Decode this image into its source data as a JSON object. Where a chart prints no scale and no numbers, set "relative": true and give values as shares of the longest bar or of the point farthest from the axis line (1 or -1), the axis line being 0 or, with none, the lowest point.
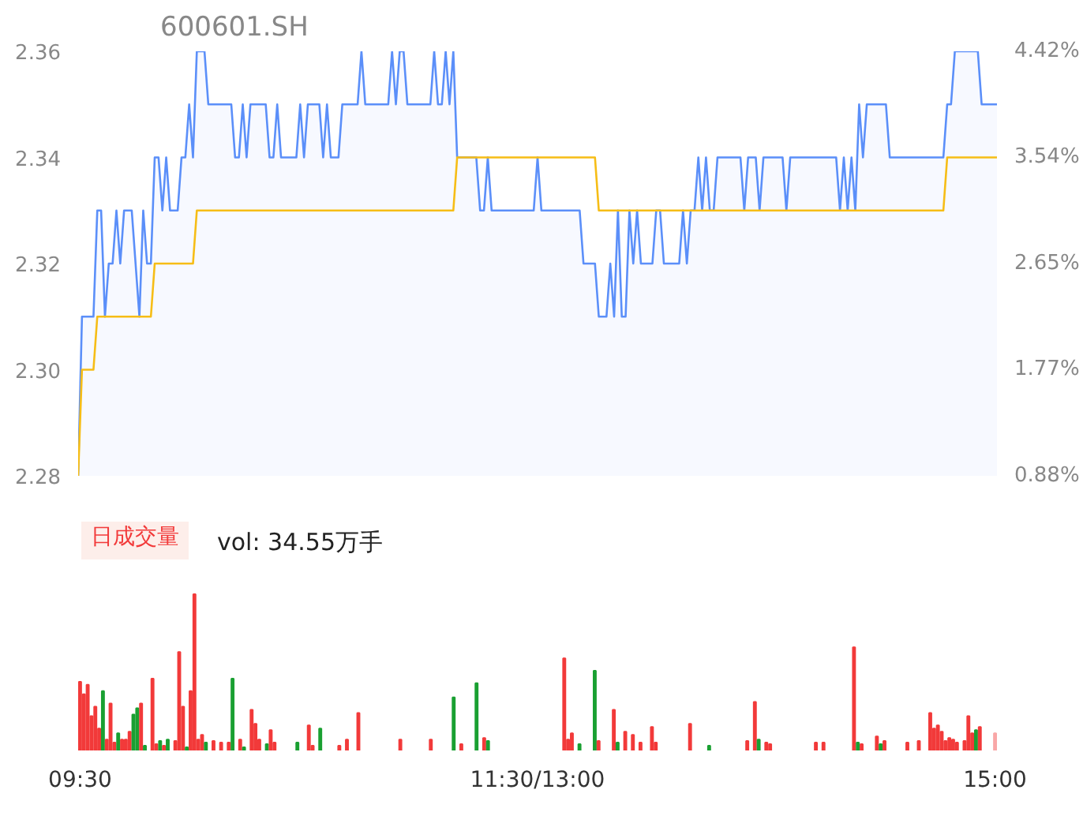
{
  "chart_data": [
    {
      "type": "line",
      "title": "600601.SH",
      "ylim": [
        2.28,
        2.36
      ],
      "yticks": [
        {
          "value": 2.28,
          "label": "2.28"
        },
        {
          "value": 2.3,
          "label": "2.30"
        },
        {
          "value": 2.32,
          "label": "2.32"
        },
        {
          "value": 2.34,
          "label": "2.34"
        },
        {
          "value": 2.36,
          "label": "2.36"
        }
      ],
      "y2lim": [
        0.88,
        4.42
      ],
      "y2ticks": [
        {
          "value": 0.88,
          "label": "0.88%"
        },
        {
          "value": 1.77,
          "label": "1.77%"
        },
        {
          "value": 2.65,
          "label": "2.65%"
        },
        {
          "value": 3.54,
          "label": "3.54%"
        },
        {
          "value": 4.42,
          "label": "4.42%"
        }
      ],
      "tick_labels": "y",
      "grid": false,
      "categories": [
        null,
        null,
        null,
        null,
        null,
        null,
        null,
        null,
        null,
        null,
        null,
        null,
        null,
        null,
        null,
        null,
        null,
        null,
        null,
        null,
        null,
        null,
        null,
        null,
        null,
        null,
        null,
        null,
        null,
        null,
        null,
        null,
        null,
        null,
        null,
        null,
        null,
        null,
        null,
        null,
        null,
        null,
        null,
        null,
        null,
        null,
        null,
        null,
        null,
        null,
        null,
        null,
        null,
        null,
        null,
        null,
        null,
        null,
        null,
        null,
        null,
        null,
        null,
        null,
        null,
        null,
        null,
        null,
        null,
        null,
        null,
        null,
        null,
        null,
        null,
        null,
        null,
        null,
        null,
        null,
        null,
        null,
        null,
        null,
        null,
        null,
        null,
        null,
        null,
        null,
        null,
        null,
        null,
        null,
        null,
        null,
        null,
        null,
        null,
        null,
        null,
        null,
        null,
        null,
        null,
        null,
        null,
        null,
        null,
        null,
        null,
        null,
        null,
        null,
        null,
        null,
        null,
        null,
        null,
        null,
        null,
        null,
        null,
        null,
        null,
        null,
        null,
        null,
        null,
        null,
        null,
        null,
        null,
        null,
        null,
        null,
        null,
        null,
        null,
        null,
        null,
        null,
        null,
        null,
        null,
        null,
        null,
        null,
        null,
        null,
        null,
        null,
        null,
        null,
        null,
        null,
        null,
        null,
        null,
        null,
        null,
        null,
        null,
        null,
        null,
        null,
        null,
        null,
        null,
        null,
        null,
        null,
        null,
        null,
        null,
        null,
        null,
        null,
        null,
        null,
        null,
        null,
        null,
        null,
        null,
        null,
        null,
        null,
        null,
        null,
        null,
        null,
        null,
        null,
        null,
        null,
        null,
        null,
        null,
        null,
        null,
        null,
        null,
        null,
        null,
        null,
        null,
        null,
        null,
        null,
        null,
        null,
        null,
        null,
        null,
        null,
        null,
        null,
        null,
        null,
        null,
        null,
        null,
        null,
        null,
        null,
        null,
        null,
        null,
        null,
        null,
        null,
        null,
        null,
        null,
        null,
        null,
        null,
        null,
        null,
        null
      ],
      "series": [
        {
          "type": "area",
          "color": "#5b8ff9",
          "values": [
            2.28,
            2.31,
            2.31,
            2.31,
            2.31,
            2.33,
            2.33,
            2.31,
            2.32,
            2.32,
            2.33,
            2.32,
            2.33,
            2.33,
            2.33,
            2.32,
            2.31,
            2.33,
            2.32,
            2.32,
            2.34,
            2.34,
            2.33,
            2.34,
            2.33,
            2.33,
            2.33,
            2.34,
            2.34,
            2.35,
            2.34,
            2.36,
            2.36,
            2.36,
            2.35,
            2.35,
            2.35,
            2.35,
            2.35,
            2.35,
            2.35,
            2.34,
            2.34,
            2.35,
            2.34,
            2.35,
            2.35,
            2.35,
            2.35,
            2.35,
            2.34,
            2.34,
            2.35,
            2.34,
            2.34,
            2.34,
            2.34,
            2.34,
            2.35,
            2.34,
            2.35,
            2.35,
            2.35,
            2.35,
            2.34,
            2.35,
            2.34,
            2.34,
            2.34,
            2.35,
            2.35,
            2.35,
            2.35,
            2.35,
            2.36,
            2.35,
            2.35,
            2.35,
            2.35,
            2.35,
            2.35,
            2.35,
            2.36,
            2.35,
            2.36,
            2.36,
            2.35,
            2.35,
            2.35,
            2.35,
            2.35,
            2.35,
            2.35,
            2.36,
            2.35,
            2.35,
            2.36,
            2.35,
            2.36,
            2.34,
            2.34,
            2.34,
            2.34,
            2.34,
            2.34,
            2.33,
            2.33,
            2.34,
            2.33,
            2.33,
            2.33,
            2.33,
            2.33,
            2.33,
            2.33,
            2.33,
            2.33,
            2.33,
            2.33,
            2.33,
            2.34,
            2.33,
            2.33,
            2.33,
            2.33,
            2.33,
            2.33,
            2.33,
            2.33,
            2.33,
            2.33,
            2.33,
            2.32,
            2.32,
            2.32,
            2.32,
            2.31,
            2.31,
            2.31,
            2.32,
            2.31,
            2.33,
            2.31,
            2.31,
            2.33,
            2.32,
            2.33,
            2.32,
            2.32,
            2.32,
            2.32,
            2.33,
            2.33,
            2.32,
            2.32,
            2.32,
            2.32,
            2.32,
            2.33,
            2.32,
            2.33,
            2.33,
            2.34,
            2.33,
            2.34,
            2.33,
            2.33,
            2.34,
            2.34,
            2.34,
            2.34,
            2.34,
            2.34,
            2.34,
            2.33,
            2.34,
            2.34,
            2.34,
            2.33,
            2.34,
            2.34,
            2.34,
            2.34,
            2.34,
            2.34,
            2.33,
            2.34,
            2.34,
            2.34,
            2.34,
            2.34,
            2.34,
            2.34,
            2.34,
            2.34,
            2.34,
            2.34,
            2.34,
            2.34,
            2.33,
            2.34,
            2.33,
            2.34,
            2.33,
            2.35,
            2.34,
            2.35,
            2.35,
            2.35,
            2.35,
            2.35,
            2.35,
            2.34,
            2.34,
            2.34,
            2.34,
            2.34,
            2.34,
            2.34,
            2.34,
            2.34,
            2.34,
            2.34,
            2.34,
            2.34,
            2.34,
            2.34,
            2.35,
            2.35,
            2.36,
            2.36,
            2.36,
            2.36,
            2.36,
            2.36,
            2.36,
            2.35,
            2.35,
            2.35,
            2.35,
            2.35
          ]
        },
        {
          "type": "line",
          "color": "#f6bd16",
          "values": [
            2.28,
            2.3,
            2.3,
            2.3,
            2.3,
            2.31,
            2.31,
            2.31,
            2.31,
            2.31,
            2.31,
            2.31,
            2.31,
            2.31,
            2.31,
            2.31,
            2.31,
            2.31,
            2.31,
            2.31,
            2.32,
            2.32,
            2.32,
            2.32,
            2.32,
            2.32,
            2.32,
            2.32,
            2.32,
            2.32,
            2.32,
            2.33,
            2.33,
            2.33,
            2.33,
            2.33,
            2.33,
            2.33,
            2.33,
            2.33,
            2.33,
            2.33,
            2.33,
            2.33,
            2.33,
            2.33,
            2.33,
            2.33,
            2.33,
            2.33,
            2.33,
            2.33,
            2.33,
            2.33,
            2.33,
            2.33,
            2.33,
            2.33,
            2.33,
            2.33,
            2.33,
            2.33,
            2.33,
            2.33,
            2.33,
            2.33,
            2.33,
            2.33,
            2.33,
            2.33,
            2.33,
            2.33,
            2.33,
            2.33,
            2.33,
            2.33,
            2.33,
            2.33,
            2.33,
            2.33,
            2.33,
            2.33,
            2.33,
            2.33,
            2.33,
            2.33,
            2.33,
            2.33,
            2.33,
            2.33,
            2.33,
            2.33,
            2.33,
            2.33,
            2.33,
            2.33,
            2.33,
            2.33,
            2.33,
            2.34,
            2.34,
            2.34,
            2.34,
            2.34,
            2.34,
            2.34,
            2.34,
            2.34,
            2.34,
            2.34,
            2.34,
            2.34,
            2.34,
            2.34,
            2.34,
            2.34,
            2.34,
            2.34,
            2.34,
            2.34,
            2.34,
            2.34,
            2.34,
            2.34,
            2.34,
            2.34,
            2.34,
            2.34,
            2.34,
            2.34,
            2.34,
            2.34,
            2.34,
            2.34,
            2.34,
            2.34,
            2.33,
            2.33,
            2.33,
            2.33,
            2.33,
            2.33,
            2.33,
            2.33,
            2.33,
            2.33,
            2.33,
            2.33,
            2.33,
            2.33,
            2.33,
            2.33,
            2.33,
            2.33,
            2.33,
            2.33,
            2.33,
            2.33,
            2.33,
            2.33,
            2.33,
            2.33,
            2.33,
            2.33,
            2.33,
            2.33,
            2.33,
            2.33,
            2.33,
            2.33,
            2.33,
            2.33,
            2.33,
            2.33,
            2.33,
            2.33,
            2.33,
            2.33,
            2.33,
            2.33,
            2.33,
            2.33,
            2.33,
            2.33,
            2.33,
            2.33,
            2.33,
            2.33,
            2.33,
            2.33,
            2.33,
            2.33,
            2.33,
            2.33,
            2.33,
            2.33,
            2.33,
            2.33,
            2.33,
            2.33,
            2.33,
            2.33,
            2.33,
            2.33,
            2.33,
            2.33,
            2.33,
            2.33,
            2.33,
            2.33,
            2.33,
            2.33,
            2.33,
            2.33,
            2.33,
            2.33,
            2.33,
            2.33,
            2.33,
            2.33,
            2.33,
            2.33,
            2.33,
            2.33,
            2.33,
            2.33,
            2.33,
            2.34,
            2.34,
            2.34,
            2.34,
            2.34,
            2.34,
            2.34,
            2.34,
            2.34,
            2.34,
            2.34,
            2.34,
            2.34,
            2.34
          ]
        }
      ]
    },
    {
      "type": "bar",
      "title": "日成交量",
      "annotations": [
        "vol: 34.55万手"
      ],
      "relative": true,
      "tick_labels": "x",
      "grid": false,
      "categories": [
        "09:30",
        null,
        null,
        null,
        null,
        null,
        null,
        null,
        null,
        null,
        null,
        null,
        null,
        null,
        null,
        null,
        null,
        null,
        null,
        null,
        null,
        null,
        null,
        null,
        null,
        null,
        null,
        null,
        null,
        null,
        null,
        null,
        null,
        null,
        null,
        null,
        null,
        null,
        null,
        null,
        null,
        null,
        null,
        null,
        null,
        null,
        null,
        null,
        null,
        null,
        null,
        null,
        null,
        null,
        null,
        null,
        null,
        null,
        null,
        null,
        null,
        null,
        null,
        null,
        null,
        null,
        null,
        null,
        null,
        null,
        null,
        null,
        null,
        null,
        null,
        null,
        null,
        null,
        null,
        null,
        null,
        null,
        null,
        null,
        null,
        null,
        null,
        null,
        null,
        null,
        null,
        null,
        null,
        null,
        null,
        null,
        null,
        null,
        null,
        null,
        null,
        null,
        null,
        null,
        null,
        null,
        null,
        null,
        null,
        null,
        null,
        null,
        null,
        null,
        null,
        null,
        null,
        null,
        null,
        null,
        "11:30/13:00",
        null,
        null,
        null,
        null,
        null,
        null,
        null,
        null,
        null,
        null,
        null,
        null,
        null,
        null,
        null,
        null,
        null,
        null,
        null,
        null,
        null,
        null,
        null,
        null,
        null,
        null,
        null,
        null,
        null,
        null,
        null,
        null,
        null,
        null,
        null,
        null,
        null,
        null,
        null,
        null,
        null,
        null,
        null,
        null,
        null,
        null,
        null,
        null,
        null,
        null,
        null,
        null,
        null,
        null,
        null,
        null,
        null,
        null,
        null,
        null,
        null,
        null,
        null,
        null,
        null,
        null,
        null,
        null,
        null,
        null,
        null,
        null,
        null,
        null,
        null,
        null,
        null,
        null,
        null,
        null,
        null,
        null,
        null,
        null,
        null,
        null,
        null,
        null,
        null,
        null,
        null,
        null,
        null,
        null,
        null,
        null,
        null,
        null,
        null,
        null,
        null,
        null,
        null,
        null,
        null,
        null,
        null,
        null,
        null,
        null,
        null,
        null,
        null,
        null,
        null,
        null,
        null,
        null,
        null,
        "15:00"
      ],
      "values": [
        0.44,
        0.36,
        0.42,
        0.22,
        0.28,
        0.14,
        0.38,
        0.07,
        0.3,
        0.05,
        0.11,
        0.07,
        0.07,
        0.12,
        0.23,
        0.27,
        0.3,
        0.03,
        null,
        0.46,
        0.04,
        0.06,
        0.03,
        0.07,
        null,
        0.06,
        0.63,
        0.28,
        0.02,
        0.38,
        1,
        0.07,
        0.1,
        0.05,
        null,
        0.06,
        null,
        0.05,
        null,
        0.05,
        0.46,
        null,
        0.07,
        0.02,
        null,
        0.26,
        0.17,
        0.07,
        null,
        0.04,
        0.13,
        0.05,
        null,
        null,
        null,
        null,
        null,
        0.05,
        null,
        null,
        0.16,
        0.03,
        null,
        0.14,
        null,
        null,
        null,
        null,
        0.03,
        null,
        0.07,
        null,
        null,
        0.24,
        null,
        null,
        null,
        null,
        null,
        null,
        null,
        null,
        null,
        null,
        0.07,
        null,
        null,
        null,
        null,
        null,
        null,
        null,
        0.07,
        null,
        null,
        null,
        null,
        null,
        0.34,
        null,
        0.04,
        null,
        null,
        null,
        0.43,
        null,
        0.08,
        0.06,
        null,
        null,
        null,
        null,
        null,
        null,
        null,
        null,
        null,
        null,
        null,
        null,
        null,
        null,
        null,
        null,
        null,
        null,
        null,
        0.59,
        0.07,
        0.11,
        null,
        0.04,
        null,
        null,
        null,
        0.51,
        0.06,
        null,
        null,
        null,
        0.26,
        0.05,
        null,
        0.12,
        null,
        0.1,
        null,
        0.05,
        null,
        null,
        0.15,
        0.05,
        null,
        null,
        null,
        null,
        null,
        null,
        null,
        null,
        0.17,
        null,
        null,
        null,
        null,
        0.03,
        null,
        null,
        null,
        null,
        null,
        null,
        null,
        null,
        null,
        0.06,
        null,
        0.31,
        0.07,
        null,
        0.05,
        0.04,
        null,
        null,
        null,
        null,
        null,
        null,
        null,
        null,
        null,
        null,
        null,
        0.05,
        null,
        0.05,
        null,
        null,
        null,
        null,
        null,
        null,
        null,
        0.66,
        0.05,
        0.04,
        null,
        null,
        null,
        0.09,
        0.04,
        0.06,
        null,
        null,
        null,
        null,
        null,
        0.05,
        null,
        null,
        0.06,
        null,
        null,
        0.24,
        0.14,
        0.16,
        0.12,
        0.06,
        0.08,
        0.07,
        0.05,
        null,
        0.06,
        0.22,
        0.11,
        0.13,
        0.15,
        null,
        null,
        null,
        0.11
      ],
      "colors": [
        "#f23a3a",
        "#f23a3a",
        "#f23a3a",
        "#f23a3a",
        "#f23a3a",
        "#f23a3a",
        "#1aa032",
        "#f23a3a",
        "#f23a3a",
        "#f23a3a",
        "#1aa032",
        "#f23a3a",
        "#f23a3a",
        "#f23a3a",
        "#1aa032",
        "#1aa032",
        "#f23a3a",
        "#1aa032",
        "#f23a3a",
        "#f23a3a",
        "#f23a3a",
        "#1aa032",
        "#f23a3a",
        "#1aa032",
        "#f23a3a",
        "#f23a3a",
        "#f23a3a",
        "#f23a3a",
        "#1aa032",
        "#f23a3a",
        "#f23a3a",
        "#f23a3a",
        "#f23a3a",
        "#1aa032",
        "#f23a3a",
        "#f23a3a",
        "#f23a3a",
        "#f23a3a",
        "#f23a3a",
        "#f23a3a",
        "#1aa032",
        "#f23a3a",
        "#f23a3a",
        "#1aa032",
        "#f23a3a",
        "#f23a3a",
        "#f23a3a",
        "#f23a3a",
        "#f23a3a",
        "#1aa032",
        "#f23a3a",
        "#f23a3a",
        "#f23a3a",
        "#f23a3a",
        "#f23a3a",
        "#f23a3a",
        "#f23a3a",
        "#1aa032",
        "#f23a3a",
        "#f23a3a",
        "#f23a3a",
        "#f23a3a",
        "#f23a3a",
        "#1aa032",
        "#f23a3a",
        "#f23a3a",
        "#f23a3a",
        "#f23a3a",
        "#f23a3a",
        "#f23a3a",
        "#f23a3a",
        "#f23a3a",
        "#f23a3a",
        "#f23a3a",
        "#f23a3a",
        "#f23a3a",
        "#f23a3a",
        "#f23a3a",
        "#f23a3a",
        "#f23a3a",
        "#f23a3a",
        "#f23a3a",
        "#f23a3a",
        "#f23a3a",
        "#f23a3a",
        "#f23a3a",
        "#f23a3a",
        "#f23a3a",
        "#f23a3a",
        "#f23a3a",
        "#f23a3a",
        "#f23a3a",
        "#f23a3a",
        "#f23a3a",
        "#f23a3a",
        "#f23a3a",
        "#f23a3a",
        "#f23a3a",
        "#1aa032",
        "#f23a3a",
        "#f23a3a",
        "#f23a3a",
        "#f23a3a",
        "#f23a3a",
        "#1aa032",
        "#f23a3a",
        "#f23a3a",
        "#1aa032",
        "#f23a3a",
        "#f23a3a",
        "#f23a3a",
        "#f23a3a",
        "#f23a3a",
        "#f23a3a",
        "#f23a3a",
        "#f23a3a",
        "#f23a3a",
        "#f23a3a",
        "#f23a3a",
        "#f23a3a",
        "#f23a3a",
        "#f23a3a",
        "#f23a3a",
        "#f23a3a",
        "#f23a3a",
        "#f23a3a",
        "#f23a3a",
        "#f23a3a",
        "#f23a3a",
        "#f23a3a",
        "#f23a3a",
        "#1aa032",
        "#f23a3a",
        "#f23a3a",
        "#f23a3a",
        "#1aa032",
        "#f23a3a",
        "#f23a3a",
        "#f23a3a",
        "#f23a3a",
        "#f23a3a",
        "#1aa032",
        "#f23a3a",
        "#f23a3a",
        "#f23a3a",
        "#f23a3a",
        "#f23a3a",
        "#f23a3a",
        "#f23a3a",
        "#f23a3a",
        "#f23a3a",
        "#f23a3a",
        "#f23a3a",
        "#f23a3a",
        "#f23a3a",
        "#f23a3a",
        "#f23a3a",
        "#f23a3a",
        "#f23a3a",
        "#f23a3a",
        "#f23a3a",
        "#f23a3a",
        "#f23a3a",
        "#f23a3a",
        "#f23a3a",
        "#1aa032",
        "#f23a3a",
        "#f23a3a",
        "#f23a3a",
        "#f23a3a",
        "#f23a3a",
        "#f23a3a",
        "#f23a3a",
        "#f23a3a",
        "#f23a3a",
        "#f23a3a",
        "#f23a3a",
        "#f23a3a",
        "#1aa032",
        "#f23a3a",
        "#f23a3a",
        "#f23a3a",
        "#f23a3a",
        "#f23a3a",
        "#f23a3a",
        "#f23a3a",
        "#f23a3a",
        "#f23a3a",
        "#f23a3a",
        "#f23a3a",
        "#f23a3a",
        "#f23a3a",
        "#f23a3a",
        "#f23a3a",
        "#f23a3a",
        "#f23a3a",
        "#f23a3a",
        "#f23a3a",
        "#f23a3a",
        "#f23a3a",
        "#f23a3a",
        "#f23a3a",
        "#f23a3a",
        "#f23a3a",
        "#1aa032",
        "#f23a3a",
        "#f23a3a",
        "#f23a3a",
        "#f23a3a",
        "#f23a3a",
        "#1aa032",
        "#f23a3a",
        "#f23a3a",
        "#f23a3a",
        "#f23a3a",
        "#f23a3a",
        "#f23a3a",
        "#f23a3a",
        "#f23a3a",
        "#f23a3a",
        "#f23a3a",
        "#f23a3a",
        "#f23a3a",
        "#f23a3a",
        "#f23a3a",
        "#f23a3a",
        "#f23a3a",
        "#f23a3a",
        "#f23a3a",
        "#f23a3a",
        "#f23a3a",
        "#f23a3a",
        "#f23a3a",
        "#f23a3a",
        "#f23a3a",
        "#1aa032",
        "#f23a3a",
        "#f23a3a",
        "#f23a3a",
        "#f23a3a",
        "#f9a7a7"
      ]
    }
  ]
}
